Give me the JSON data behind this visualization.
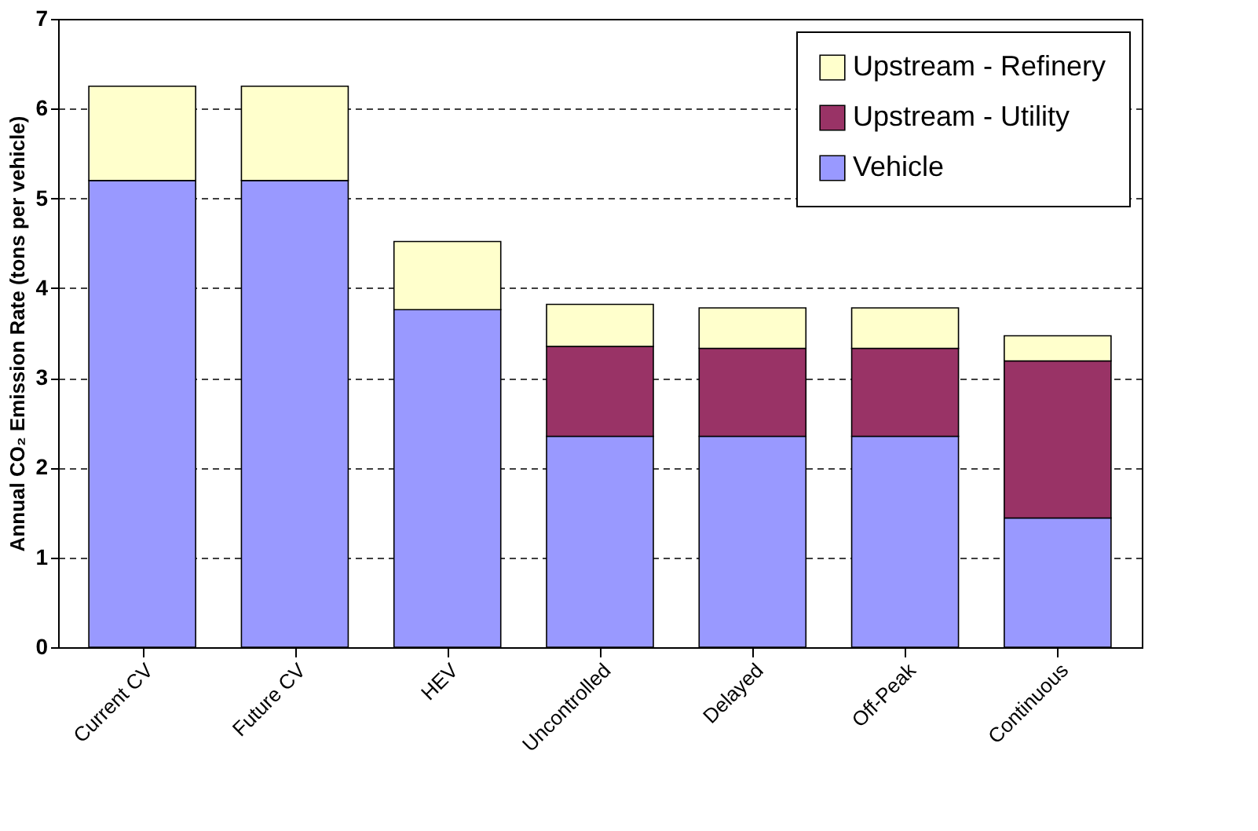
{
  "chart_data": {
    "type": "bar",
    "stacked": true,
    "ylabel": "Annual CO₂ Emission Rate (tons per vehicle)",
    "categories": [
      "Current CV",
      "Future CV",
      "HEV",
      "Uncontrolled",
      "Delayed",
      "Off-Peak",
      "Continuous"
    ],
    "series": [
      {
        "name": "Vehicle",
        "color": "#9999ff",
        "values": [
          5.2,
          5.2,
          3.76,
          2.35,
          2.35,
          2.35,
          1.44
        ]
      },
      {
        "name": "Upstream - Utility",
        "color": "#993366",
        "values": [
          0,
          0,
          0,
          1.0,
          0.98,
          0.98,
          1.75
        ]
      },
      {
        "name": "Upstream - Refinery",
        "color": "#ffffcc",
        "values": [
          1.05,
          1.05,
          0.76,
          0.47,
          0.45,
          0.45,
          0.28
        ]
      }
    ],
    "ylim": [
      0,
      7
    ],
    "yticks": [
      0,
      1,
      2,
      3,
      4,
      5,
      6,
      7
    ],
    "grid": "y",
    "legend": "top right"
  }
}
